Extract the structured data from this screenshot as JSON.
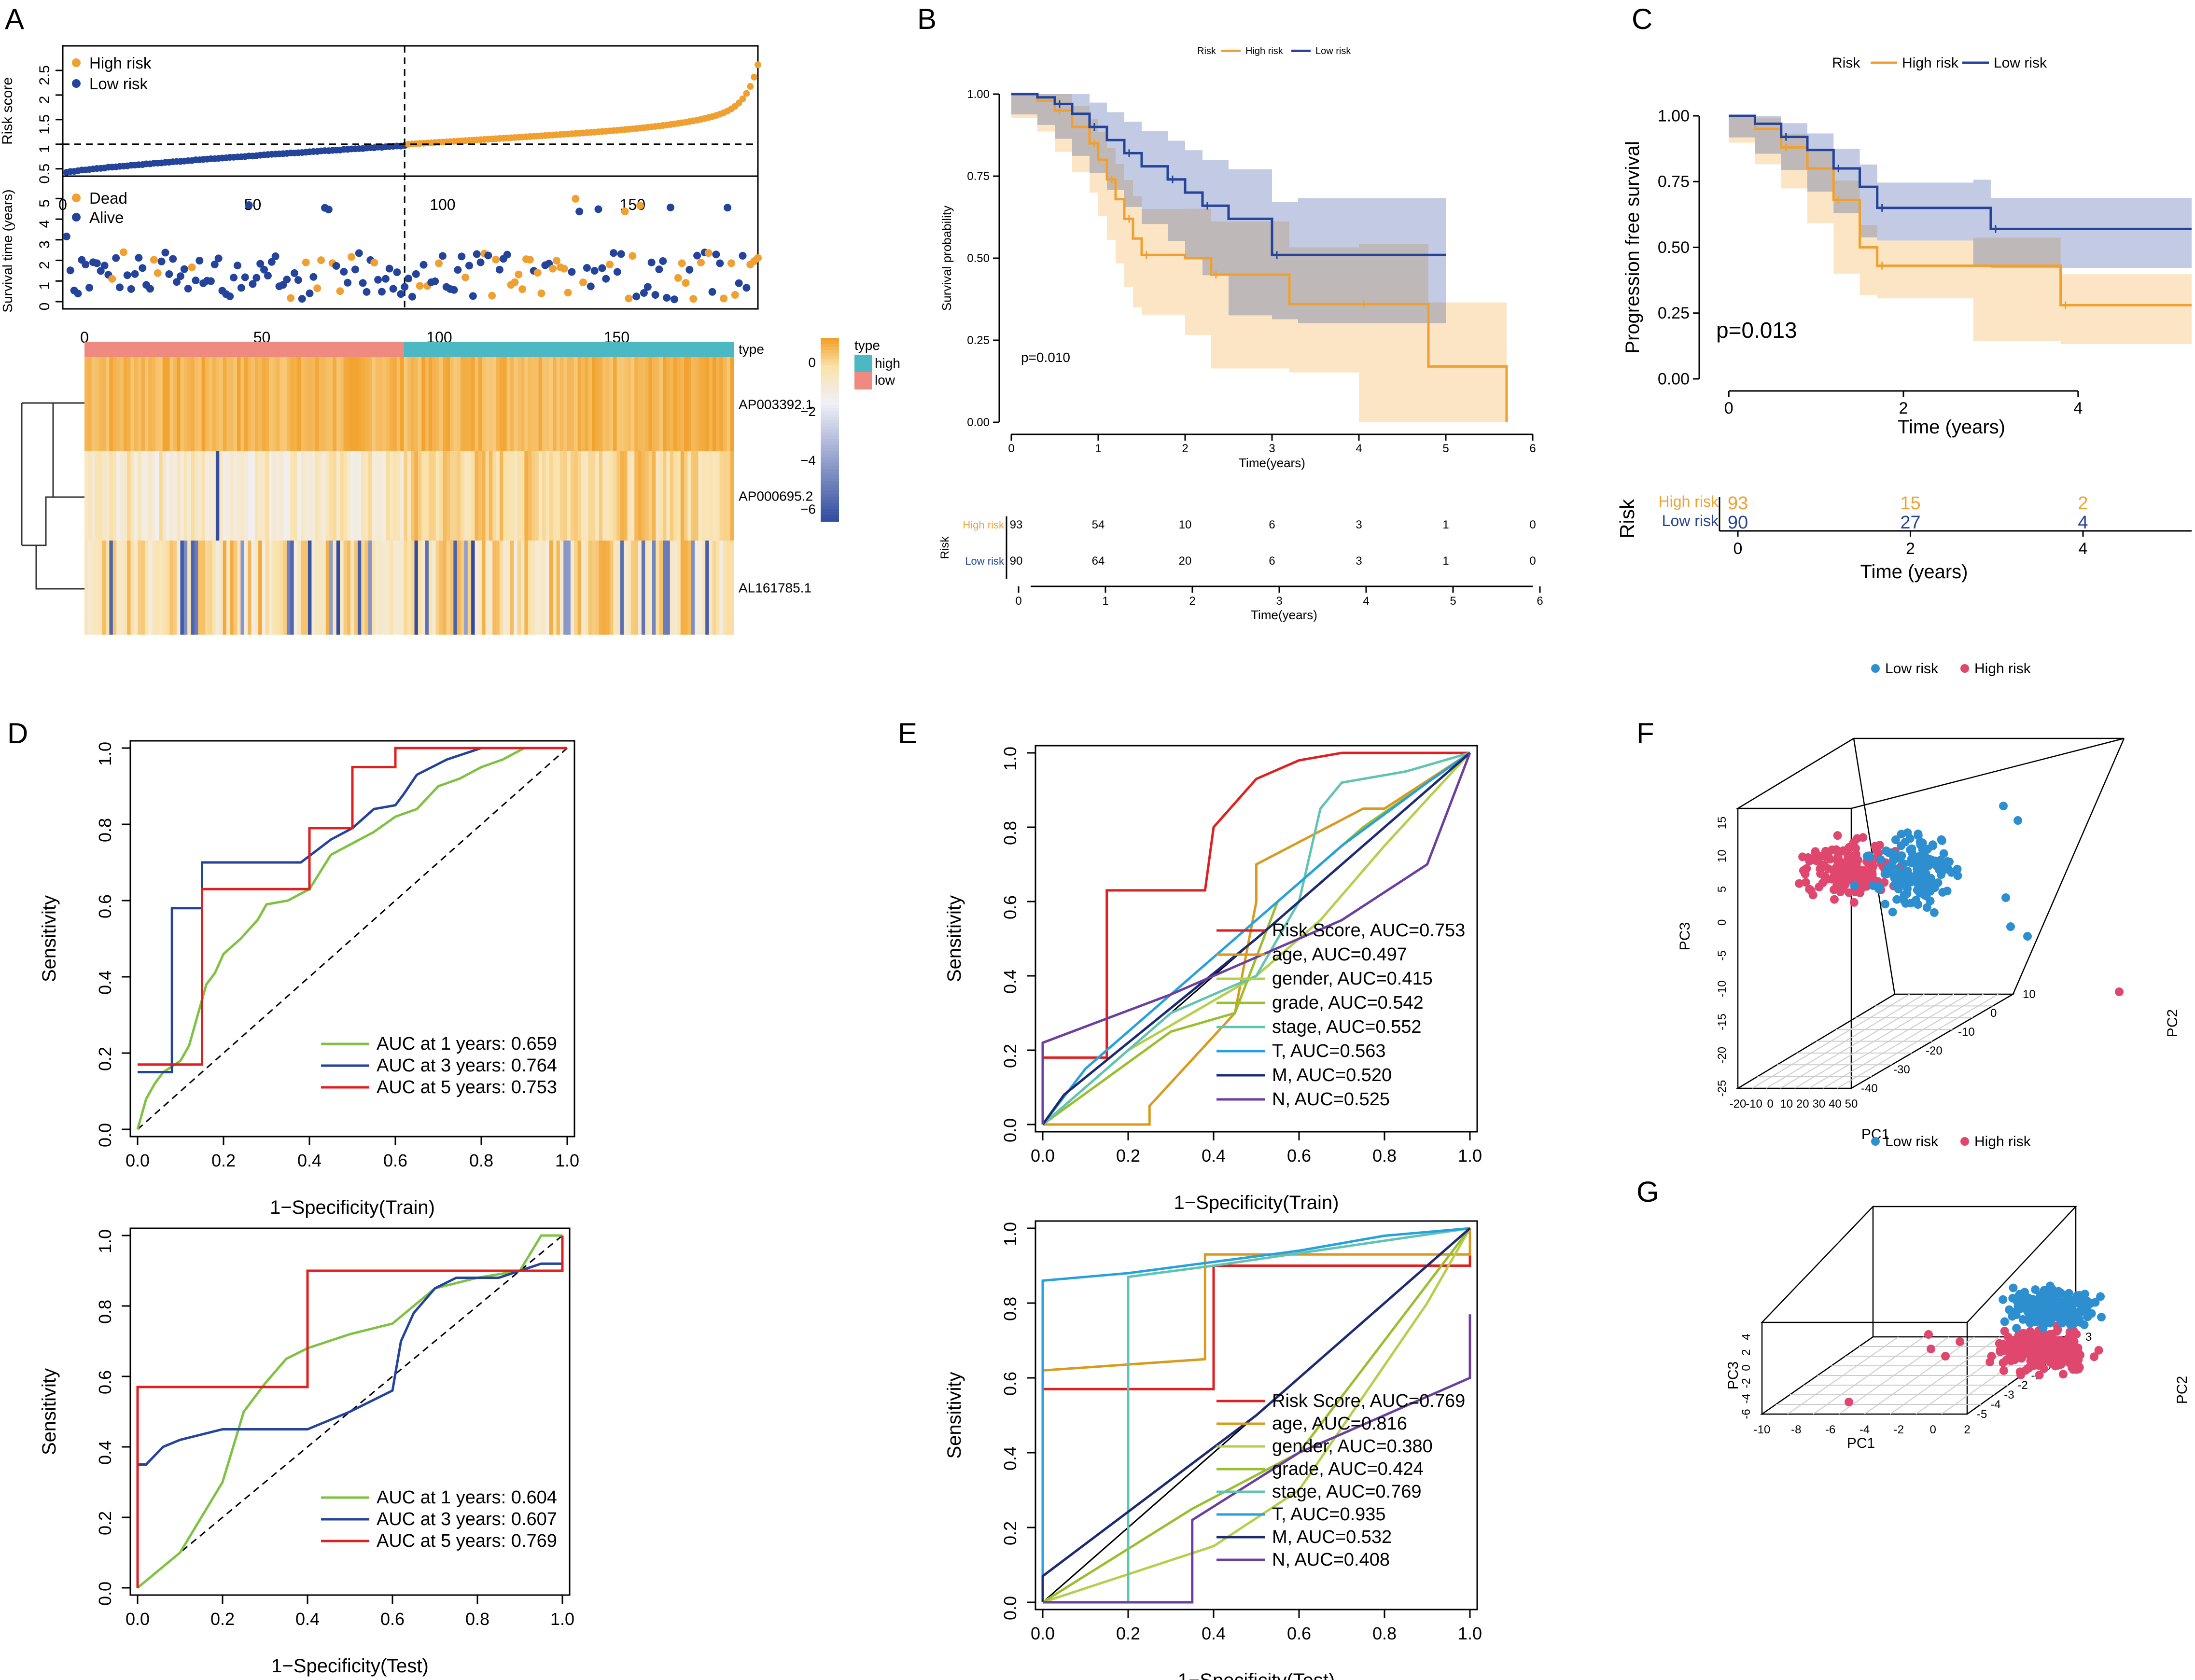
{
  "figure": {
    "panel_labels": [
      "A",
      "B",
      "C",
      "D",
      "E",
      "F",
      "G"
    ]
  },
  "colors": {
    "orange": "#F0A030",
    "blue": "#24439B",
    "red": "#E01F1F",
    "green": "#7FC241",
    "teal": "#5FC4B4",
    "cyan": "#27A1DE",
    "navy": "#1D2B73",
    "purple": "#6B3FA0",
    "yellowgreen": "#B5CF4B",
    "darkorange": "#D99A1E",
    "pca_blue": "#2E8FD0",
    "pca_red": "#E0476E",
    "heat_low": "#2F4A9E",
    "heat_high": "#F2A12C",
    "type_high": "#4BB8C4",
    "type_low": "#EE8A80"
  },
  "chart_data": [
    {
      "id": "A-risk",
      "type": "scatter",
      "ylabel": "Risk score",
      "legend": [
        "High risk",
        "Low risk"
      ],
      "legend_position": "top-left",
      "n": 183,
      "cutoff_index": 90,
      "cutoff_value": 1.0,
      "x_ticks": [
        0,
        50,
        100,
        150
      ],
      "y_ticks": [
        0.5,
        1.0,
        1.5,
        2.0,
        2.5
      ],
      "xlim": [
        0,
        183
      ],
      "ylim": [
        0.35,
        3.0
      ]
    },
    {
      "id": "A-survival",
      "type": "scatter",
      "ylabel": "Survival time (years)",
      "legend": [
        "Dead",
        "Alive"
      ],
      "legend_position": "top-left",
      "x_ticks": [
        0,
        50,
        100,
        150
      ],
      "y_ticks": [
        0,
        1,
        2,
        3,
        4,
        5
      ],
      "xlim": [
        0,
        183
      ],
      "ylim": [
        0,
        5.5
      ]
    },
    {
      "id": "A-heatmap",
      "type": "heatmap",
      "genes": [
        "AP003392.1",
        "AP000695.2",
        "AL161785.1"
      ],
      "x_ticks": [
        0,
        50,
        100,
        150
      ],
      "type_legend_title": "type",
      "type_legend": [
        "high",
        "low"
      ],
      "colorbar_ticks": [
        0,
        -2,
        -4,
        -6
      ],
      "colorbar_range": [
        -6.5,
        1
      ]
    },
    {
      "id": "B",
      "type": "line",
      "title": "",
      "xlabel": "Time(years)",
      "ylabel": "Survival probability",
      "legend_title": "Risk",
      "legend": [
        "High risk",
        "Low risk"
      ],
      "pvalue": "p=0.010",
      "x_ticks": [
        0,
        1,
        2,
        3,
        4,
        5,
        6
      ],
      "y_ticks": [
        "0.00",
        "0.25",
        "0.50",
        "0.75",
        "1.00"
      ],
      "xlim": [
        0,
        6
      ],
      "ylim": [
        0,
        1
      ],
      "series": [
        {
          "name": "High risk",
          "x": [
            0,
            0.3,
            0.5,
            0.7,
            0.9,
            1.0,
            1.1,
            1.2,
            1.3,
            1.4,
            1.5,
            2.0,
            2.3,
            3.2,
            4.0,
            4.8,
            5.7
          ],
          "y": [
            1,
            0.98,
            0.95,
            0.9,
            0.85,
            0.8,
            0.74,
            0.68,
            0.62,
            0.56,
            0.51,
            0.5,
            0.45,
            0.36,
            0.36,
            0.17,
            0.0
          ]
        },
        {
          "name": "Low risk",
          "x": [
            0,
            0.3,
            0.5,
            0.7,
            0.9,
            1.1,
            1.3,
            1.5,
            1.8,
            2.0,
            2.2,
            2.5,
            3.0,
            3.3,
            5.0
          ],
          "y": [
            1,
            0.99,
            0.97,
            0.94,
            0.9,
            0.86,
            0.82,
            0.78,
            0.74,
            0.7,
            0.66,
            0.62,
            0.51,
            0.51,
            0.51
          ]
        }
      ],
      "risk_table": {
        "row_labels": [
          "High risk",
          "Low risk"
        ],
        "y_axis_label": "Risk",
        "times": [
          0,
          1,
          2,
          3,
          4,
          5,
          6
        ],
        "rows": [
          [
            "93",
            "54",
            "10",
            "6",
            "3",
            "1",
            "0"
          ],
          [
            "90",
            "64",
            "20",
            "6",
            "3",
            "1",
            "0"
          ]
        ],
        "xlabel": "Time(years)"
      }
    },
    {
      "id": "C",
      "type": "line",
      "xlabel": "Time (years)",
      "ylabel": "Progression free survival",
      "legend_title": "Risk",
      "legend": [
        "High risk",
        "Low risk"
      ],
      "pvalue": "p=0.013",
      "x_ticks": [
        0,
        2,
        4
      ],
      "y_ticks": [
        "0.00",
        "0.25",
        "0.50",
        "0.75",
        "1.00"
      ],
      "xlim": [
        -0.2,
        5.3
      ],
      "ylim": [
        0,
        1
      ],
      "series": [
        {
          "name": "High risk",
          "x": [
            0,
            0.3,
            0.6,
            0.9,
            1.2,
            1.5,
            1.7,
            2.8,
            3.8,
            5.3
          ],
          "y": [
            1,
            0.95,
            0.88,
            0.8,
            0.68,
            0.5,
            0.43,
            0.43,
            0.28,
            0.28
          ]
        },
        {
          "name": "Low risk",
          "x": [
            0,
            0.3,
            0.6,
            0.9,
            1.2,
            1.5,
            1.7,
            2.8,
            3.0,
            5.3
          ],
          "y": [
            1,
            0.97,
            0.92,
            0.87,
            0.8,
            0.73,
            0.65,
            0.65,
            0.57,
            0.57
          ]
        }
      ],
      "risk_table": {
        "y_axis_label": "Risk",
        "row_labels": [
          "High risk",
          "Low risk"
        ],
        "times": [
          0,
          2,
          4
        ],
        "rows": [
          [
            "93",
            "15",
            "2"
          ],
          [
            "90",
            "27",
            "4"
          ]
        ],
        "xlabel": "Time (years)"
      }
    },
    {
      "id": "D-train",
      "type": "line",
      "xlabel": "1−Specificity(Train)",
      "ylabel": "Sensitivity",
      "x_ticks": [
        "0.0",
        "0.2",
        "0.4",
        "0.6",
        "0.8",
        "1.0"
      ],
      "y_ticks": [
        "0.0",
        "0.2",
        "0.4",
        "0.6",
        "0.8",
        "1.0"
      ],
      "legend": [
        "AUC at 1 years: 0.659",
        "AUC at 3 years: 0.764",
        "AUC at 5 years: 0.753"
      ],
      "series": [
        {
          "name": "1 years",
          "x": [
            0,
            0.02,
            0.04,
            0.06,
            0.1,
            0.12,
            0.14,
            0.16,
            0.18,
            0.2,
            0.24,
            0.28,
            0.3,
            0.35,
            0.4,
            0.45,
            0.5,
            0.55,
            0.6,
            0.65,
            0.7,
            0.75,
            0.8,
            0.85,
            0.9,
            1.0
          ],
          "y": [
            0,
            0.08,
            0.12,
            0.15,
            0.18,
            0.22,
            0.3,
            0.38,
            0.41,
            0.46,
            0.5,
            0.55,
            0.59,
            0.6,
            0.63,
            0.72,
            0.75,
            0.78,
            0.82,
            0.84,
            0.9,
            0.92,
            0.95,
            0.97,
            1.0,
            1.0
          ]
        },
        {
          "name": "3 years",
          "x": [
            0,
            0.08,
            0.08,
            0.15,
            0.15,
            0.27,
            0.38,
            0.45,
            0.5,
            0.55,
            0.6,
            0.62,
            0.65,
            0.72,
            0.8,
            0.9,
            1.0
          ],
          "y": [
            0.15,
            0.15,
            0.58,
            0.58,
            0.7,
            0.7,
            0.7,
            0.76,
            0.79,
            0.84,
            0.85,
            0.88,
            0.93,
            0.97,
            1.0,
            1.0,
            1.0
          ]
        },
        {
          "name": "5 years",
          "x": [
            0,
            0.1,
            0.15,
            0.15,
            0.4,
            0.4,
            0.5,
            0.5,
            0.6,
            0.6,
            1.0
          ],
          "y": [
            0.17,
            0.17,
            0.17,
            0.63,
            0.63,
            0.79,
            0.79,
            0.95,
            0.95,
            1.0,
            1.0
          ]
        }
      ]
    },
    {
      "id": "D-test",
      "type": "line",
      "xlabel": "1−Specificity(Test)",
      "ylabel": "Sensitivity",
      "x_ticks": [
        "0.0",
        "0.2",
        "0.4",
        "0.6",
        "0.8",
        "1.0"
      ],
      "y_ticks": [
        "0.0",
        "0.2",
        "0.4",
        "0.6",
        "0.8",
        "1.0"
      ],
      "legend": [
        "AUC at 1 years: 0.604",
        "AUC at 3 years: 0.607",
        "AUC at 5 years: 0.769"
      ],
      "series": [
        {
          "name": "1 years",
          "x": [
            0,
            0.05,
            0.1,
            0.15,
            0.2,
            0.25,
            0.3,
            0.35,
            0.4,
            0.5,
            0.6,
            0.7,
            0.8,
            0.9,
            0.95,
            1.0
          ],
          "y": [
            0,
            0.05,
            0.1,
            0.2,
            0.3,
            0.5,
            0.58,
            0.65,
            0.68,
            0.72,
            0.75,
            0.85,
            0.88,
            0.9,
            1.0,
            1.0
          ]
        },
        {
          "name": "3 years",
          "x": [
            0,
            0.02,
            0.06,
            0.1,
            0.2,
            0.3,
            0.4,
            0.5,
            0.6,
            0.62,
            0.65,
            0.7,
            0.75,
            0.85,
            0.95,
            1.0
          ],
          "y": [
            0.35,
            0.35,
            0.4,
            0.42,
            0.45,
            0.45,
            0.45,
            0.5,
            0.56,
            0.7,
            0.78,
            0.85,
            0.88,
            0.88,
            0.92,
            0.92
          ]
        },
        {
          "name": "5 years",
          "x": [
            0,
            0,
            0.2,
            0.4,
            0.4,
            0.8,
            1.0,
            1.0
          ],
          "y": [
            0,
            0.57,
            0.57,
            0.57,
            0.9,
            0.9,
            0.9,
            1.0
          ]
        }
      ]
    },
    {
      "id": "E-train",
      "type": "line",
      "xlabel": "1−Specificity(Train)",
      "ylabel": "Sensitivity",
      "x_ticks": [
        "0.0",
        "0.2",
        "0.4",
        "0.6",
        "0.8",
        "1.0"
      ],
      "y_ticks": [
        "0.0",
        "0.2",
        "0.4",
        "0.6",
        "0.8",
        "1.0"
      ],
      "legend": [
        "Risk Score, AUC=0.753",
        "age, AUC=0.497",
        "gender, AUC=0.415",
        "grade, AUC=0.542",
        "stage, AUC=0.552",
        "T, AUC=0.563",
        "M, AUC=0.520",
        "N, AUC=0.525"
      ],
      "series": [
        {
          "name": "Risk Score",
          "x": [
            0,
            0,
            0.15,
            0.15,
            0.38,
            0.38,
            0.4,
            0.4,
            0.5,
            0.5,
            0.6,
            0.6,
            0.7,
            1.0
          ],
          "y": [
            0,
            0.18,
            0.18,
            0.63,
            0.63,
            0.63,
            0.8,
            0.8,
            0.93,
            0.93,
            0.98,
            0.98,
            1.0,
            1.0
          ]
        },
        {
          "name": "age",
          "x": [
            0,
            0.25,
            0.25,
            0.45,
            0.5,
            0.5,
            0.75,
            0.8,
            1.0
          ],
          "y": [
            0,
            0.0,
            0.05,
            0.3,
            0.6,
            0.7,
            0.85,
            0.85,
            1.0
          ]
        },
        {
          "name": "gender",
          "x": [
            0,
            0.2,
            0.5,
            0.65,
            0.8,
            1.0
          ],
          "y": [
            0,
            0.2,
            0.4,
            0.55,
            0.75,
            1.0
          ]
        },
        {
          "name": "grade",
          "x": [
            0,
            0.3,
            0.45,
            0.55,
            0.75,
            1.0
          ],
          "y": [
            0,
            0.25,
            0.3,
            0.6,
            0.8,
            1.0
          ]
        },
        {
          "name": "stage",
          "x": [
            0,
            0.3,
            0.5,
            0.6,
            0.65,
            0.7,
            0.85,
            1.0
          ],
          "y": [
            0,
            0.3,
            0.4,
            0.6,
            0.85,
            0.92,
            0.95,
            1.0
          ]
        },
        {
          "name": "T",
          "x": [
            0,
            0.1,
            0.3,
            0.5,
            0.7,
            0.9,
            1.0
          ],
          "y": [
            0,
            0.15,
            0.35,
            0.55,
            0.75,
            0.92,
            1.0
          ]
        },
        {
          "name": "M",
          "x": [
            0,
            0.05,
            0.5,
            1.0
          ],
          "y": [
            0,
            0.08,
            0.5,
            1.0
          ]
        },
        {
          "name": "N",
          "x": [
            0,
            0,
            0.3,
            0.7,
            0.9,
            1.0
          ],
          "y": [
            0,
            0.22,
            0.35,
            0.55,
            0.7,
            1.0
          ]
        }
      ]
    },
    {
      "id": "E-test",
      "type": "line",
      "xlabel": "1−Specificity(Test)",
      "ylabel": "Sensitivity",
      "x_ticks": [
        "0.0",
        "0.2",
        "0.4",
        "0.6",
        "0.8",
        "1.0"
      ],
      "y_ticks": [
        "0.0",
        "0.2",
        "0.4",
        "0.6",
        "0.8",
        "1.0"
      ],
      "legend": [
        "Risk Score, AUC=0.769",
        "age, AUC=0.816",
        "gender, AUC=0.380",
        "grade, AUC=0.424",
        "stage, AUC=0.769",
        "T, AUC=0.935",
        "M, AUC=0.532",
        "N, AUC=0.408"
      ],
      "series": [
        {
          "name": "Risk Score",
          "x": [
            0,
            0,
            0.4,
            0.4,
            1.0,
            1.0
          ],
          "y": [
            0,
            0.57,
            0.57,
            0.9,
            0.9,
            1.0
          ]
        },
        {
          "name": "age",
          "x": [
            0,
            0,
            0.38,
            0.38,
            1.0,
            1.0
          ],
          "y": [
            0,
            0.62,
            0.65,
            0.93,
            0.93,
            1.0
          ]
        },
        {
          "name": "gender",
          "x": [
            0,
            0.4,
            0.6,
            0.75,
            0.9,
            1.0
          ],
          "y": [
            0,
            0.15,
            0.3,
            0.55,
            0.8,
            1.0
          ]
        },
        {
          "name": "grade",
          "x": [
            0,
            0.35,
            0.6,
            0.8,
            1.0
          ],
          "y": [
            0,
            0.25,
            0.4,
            0.7,
            1.0
          ]
        },
        {
          "name": "stage",
          "x": [
            0,
            0.2,
            0.2,
            0.4,
            1.0
          ],
          "y": [
            0,
            0,
            0.87,
            0.9,
            1.0
          ]
        },
        {
          "name": "T",
          "x": [
            0,
            0,
            0.2,
            0.6,
            0.8,
            1.0
          ],
          "y": [
            0,
            0.86,
            0.88,
            0.94,
            0.98,
            1.0
          ]
        },
        {
          "name": "M",
          "x": [
            0,
            0,
            0.5,
            1.0
          ],
          "y": [
            0,
            0.07,
            0.5,
            1.0
          ]
        },
        {
          "name": "N",
          "x": [
            0,
            0.35,
            0.35,
            0.6,
            1.0,
            1.0
          ],
          "y": [
            0,
            0,
            0.22,
            0.4,
            0.6,
            0.77
          ]
        }
      ]
    },
    {
      "id": "F",
      "type": "scatter",
      "legend": [
        "Low risk",
        "High risk"
      ],
      "legend_position": "top",
      "xlabel": "PC1",
      "ylabel": "PC3",
      "zlabel": "PC2",
      "x_ticks": [
        -20,
        -10,
        0,
        10,
        20,
        30,
        40,
        50
      ],
      "y_ticks": [
        15,
        10,
        5,
        0,
        -5,
        -10,
        -15,
        -20,
        -25
      ],
      "z_ticks": [
        10,
        0,
        -10,
        -20,
        -30,
        -40
      ]
    },
    {
      "id": "G",
      "type": "scatter",
      "legend": [
        "Low risk",
        "High risk"
      ],
      "legend_position": "top",
      "xlabel": "PC1",
      "ylabel": "PC3",
      "zlabel": "PC2",
      "x_ticks": [
        -10,
        -8,
        -6,
        -4,
        -2,
        0,
        2
      ],
      "y_ticks": [
        4,
        2,
        0,
        -2,
        -4,
        -6
      ],
      "z_ticks": [
        3,
        2,
        1,
        0,
        -1,
        -2,
        -3,
        -4,
        -5
      ]
    }
  ]
}
